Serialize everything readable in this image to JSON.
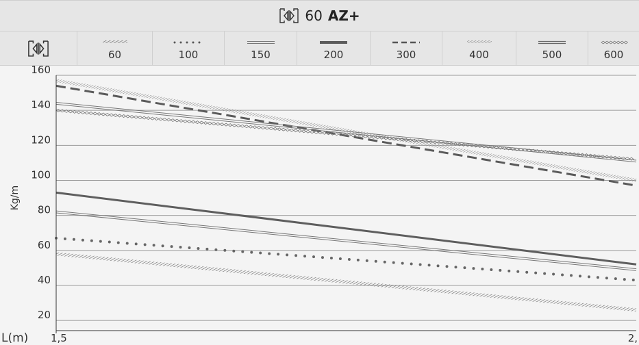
{
  "header": {
    "icon": "profile-symbol-icon",
    "title_number": "60",
    "title_bold": "AZ+"
  },
  "legend": {
    "icon": "profile-symbol-icon",
    "items": [
      {
        "label": "60",
        "style": "hatched"
      },
      {
        "label": "100",
        "style": "dotted"
      },
      {
        "label": "150",
        "style": "double-thin"
      },
      {
        "label": "200",
        "style": "thick-solid"
      },
      {
        "label": "300",
        "style": "dashed"
      },
      {
        "label": "400",
        "style": "hatched-fine"
      },
      {
        "label": "500",
        "style": "double"
      },
      {
        "label": "600",
        "style": "chain-diamond"
      }
    ]
  },
  "chart_data": {
    "type": "line",
    "ylabel": "Kg/m",
    "xlabel": "L(m)",
    "x_tick_labels": [
      "1,5",
      "2,"
    ],
    "y_ticks": [
      20,
      40,
      60,
      80,
      100,
      120,
      140,
      160
    ],
    "ylim": [
      15,
      160
    ],
    "xlim": [
      1.5,
      2.0
    ],
    "grid": "horizontal",
    "colors": {
      "line": "#6b6b6b",
      "grid": "#9a9a9a",
      "background": "#f4f4f4"
    },
    "series": [
      {
        "name": "60",
        "x": [
          1.5,
          2.0
        ],
        "y": [
          58,
          26
        ]
      },
      {
        "name": "100",
        "x": [
          1.5,
          2.0
        ],
        "y": [
          67,
          43
        ]
      },
      {
        "name": "150",
        "x": [
          1.5,
          2.0
        ],
        "y": [
          82,
          49
        ]
      },
      {
        "name": "200",
        "x": [
          1.5,
          2.0
        ],
        "y": [
          93,
          52
        ]
      },
      {
        "name": "300",
        "x": [
          1.5,
          2.0
        ],
        "y": [
          154,
          97
        ]
      },
      {
        "name": "400",
        "x": [
          1.5,
          2.0
        ],
        "y": [
          157,
          100
        ]
      },
      {
        "name": "500",
        "x": [
          1.5,
          2.0
        ],
        "y": [
          144,
          111
        ]
      },
      {
        "name": "600",
        "x": [
          1.5,
          2.0
        ],
        "y": [
          140,
          112
        ]
      }
    ]
  }
}
